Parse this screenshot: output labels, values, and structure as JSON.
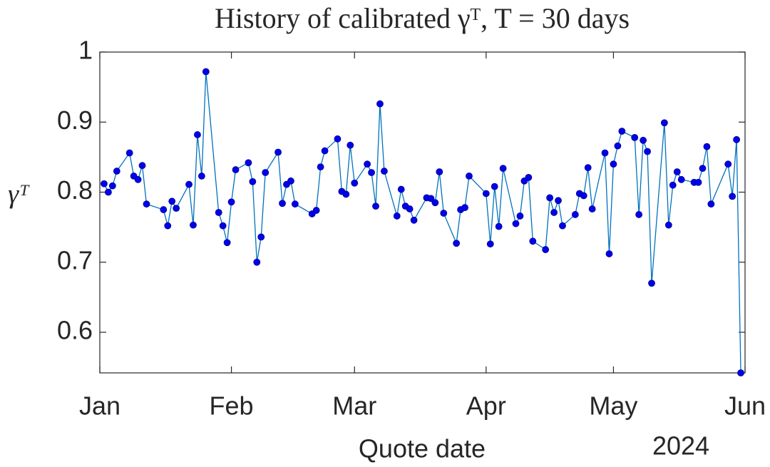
{
  "chart_data": {
    "type": "line",
    "title": "History of calibrated γᵀ, T = 30 days",
    "xlabel": "Quote date",
    "ylabel": "γᵀ",
    "year_label": "2024",
    "x": [
      1,
      2,
      3,
      4,
      7,
      8,
      9,
      10,
      11,
      15,
      16,
      17,
      18,
      21,
      22,
      23,
      24,
      25,
      28,
      29,
      30,
      31,
      32,
      35,
      36,
      37,
      38,
      39,
      42,
      43,
      44,
      45,
      46,
      50,
      51,
      52,
      53,
      56,
      57,
      58,
      59,
      60,
      63,
      64,
      65,
      66,
      67,
      70,
      71,
      72,
      73,
      74,
      77,
      78,
      79,
      80,
      81,
      84,
      85,
      86,
      87,
      91,
      92,
      93,
      94,
      95,
      98,
      99,
      100,
      101,
      102,
      105,
      106,
      107,
      108,
      109,
      112,
      113,
      114,
      115,
      116,
      119,
      120,
      121,
      122,
      123,
      126,
      127,
      128,
      129,
      130,
      133,
      134,
      135,
      136,
      137,
      140,
      141,
      142,
      143,
      144,
      148,
      149,
      150,
      151
    ],
    "series": [
      {
        "name": "γᵀ",
        "color": "#0072bd",
        "marker_color": "#0000ee",
        "values": [
          0.812,
          0.8,
          0.809,
          0.83,
          0.856,
          0.823,
          0.818,
          0.838,
          0.783,
          0.775,
          0.752,
          0.787,
          0.777,
          0.811,
          0.753,
          0.882,
          0.823,
          0.972,
          0.771,
          0.752,
          0.728,
          0.786,
          0.832,
          0.842,
          0.815,
          0.7,
          0.736,
          0.828,
          0.857,
          0.784,
          0.811,
          0.816,
          0.783,
          0.769,
          0.774,
          0.836,
          0.859,
          0.876,
          0.801,
          0.797,
          0.867,
          0.813,
          0.84,
          0.828,
          0.78,
          0.926,
          0.83,
          0.766,
          0.804,
          0.78,
          0.776,
          0.76,
          0.792,
          0.791,
          0.785,
          0.829,
          0.77,
          0.727,
          0.775,
          0.778,
          0.823,
          0.798,
          0.726,
          0.808,
          0.751,
          0.834,
          0.755,
          0.766,
          0.816,
          0.821,
          0.73,
          0.718,
          0.792,
          0.771,
          0.788,
          0.752,
          0.768,
          0.798,
          0.795,
          0.835,
          0.776,
          0.856,
          0.712,
          0.84,
          0.866,
          0.887,
          0.878,
          0.768,
          0.874,
          0.858,
          0.67,
          0.899,
          0.753,
          0.81,
          0.829,
          0.818,
          0.814,
          0.814,
          0.834,
          0.865,
          0.783,
          0.84,
          0.794,
          0.875,
          0.542
        ]
      }
    ],
    "xlim": [
      0,
      152
    ],
    "xticks": [
      {
        "value": 0,
        "label": "Jan"
      },
      {
        "value": 31,
        "label": "Feb"
      },
      {
        "value": 60,
        "label": "Mar"
      },
      {
        "value": 91,
        "label": "Apr"
      },
      {
        "value": 121,
        "label": "May"
      },
      {
        "value": 152,
        "label": "Jun"
      }
    ],
    "ylim": [
      0.542,
      1
    ],
    "yticks": [
      0.6,
      0.7,
      0.8,
      0.9,
      1
    ],
    "grid": false
  }
}
